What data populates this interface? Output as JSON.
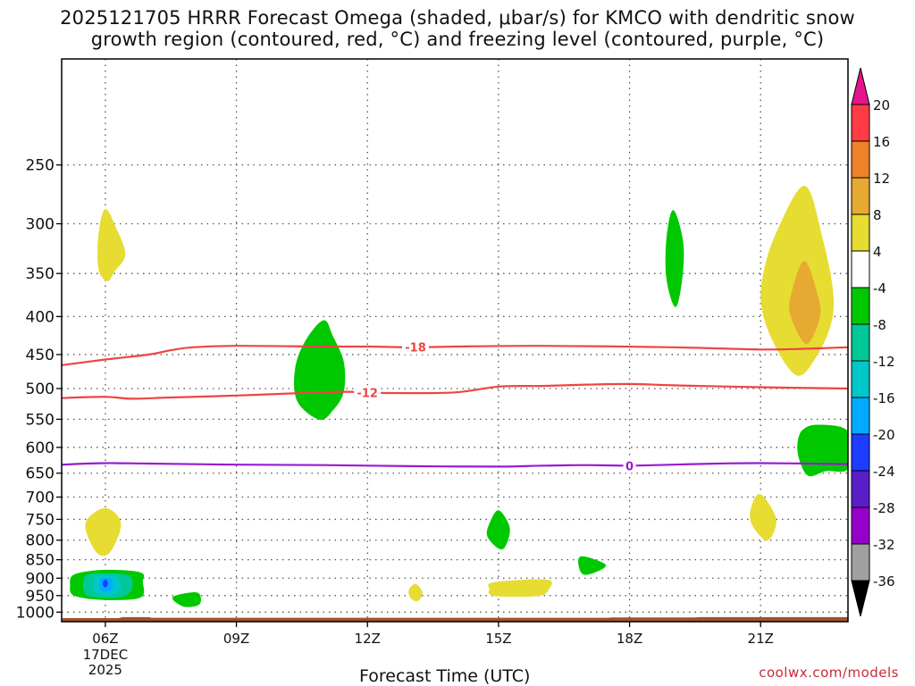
{
  "title_line1": "2025121705 HRRR Forecast Omega (shaded, μbar/s) for KMCO with dendritic snow",
  "title_line2": "growth region (contoured, red, °C) and freezing level (contoured, purple, °C)",
  "credit": "coolwx.com/models",
  "chart_data": {
    "type": "contour",
    "xlabel": "Forecast Time (UTC)",
    "x_ticks": [
      {
        "label": "06Z",
        "hour": 6,
        "sub": [
          "17DEC",
          "2025"
        ]
      },
      {
        "label": "09Z",
        "hour": 9
      },
      {
        "label": "12Z",
        "hour": 12
      },
      {
        "label": "15Z",
        "hour": 15
      },
      {
        "label": "18Z",
        "hour": 18
      },
      {
        "label": "21Z",
        "hour": 21
      }
    ],
    "xlim_hours": [
      5,
      23
    ],
    "ylim_mb": [
      1030,
      180
    ],
    "y_ticks": [
      "250",
      "300",
      "350",
      "400",
      "450",
      "500",
      "550",
      "600",
      "650",
      "700",
      "750",
      "800",
      "850",
      "900",
      "950",
      "1000"
    ],
    "colorbar_labels": [
      "20",
      "16",
      "12",
      "8",
      "4",
      "-4",
      "-8",
      "-12",
      "-16",
      "-20",
      "-24",
      "-28",
      "-32",
      "-36"
    ],
    "colorbar_colors": [
      "#ff3c46",
      "#ee8228",
      "#e6aa32",
      "#e6dc32",
      "#ffffff",
      "#00c800",
      "#00c896",
      "#00c8c8",
      "#00aaff",
      "#1e3cff",
      "#5a1ec8",
      "#9600c8",
      "#a0a0a0"
    ],
    "contours": [
      {
        "name": "-18",
        "color": "#ee4444",
        "points": [
          [
            5,
            465
          ],
          [
            6,
            457
          ],
          [
            7,
            450
          ],
          [
            7.5,
            444
          ],
          [
            8,
            440
          ],
          [
            9,
            438
          ],
          [
            11,
            439
          ],
          [
            12,
            439
          ],
          [
            13,
            440
          ],
          [
            14,
            439
          ],
          [
            16,
            438
          ],
          [
            19,
            440
          ],
          [
            21,
            443
          ],
          [
            22,
            442
          ],
          [
            23,
            440
          ]
        ],
        "label_hour": 13.1
      },
      {
        "name": "-12",
        "color": "#ee4444",
        "points": [
          [
            5,
            515
          ],
          [
            6,
            513
          ],
          [
            6.6,
            516
          ],
          [
            7.5,
            514
          ],
          [
            9,
            511
          ],
          [
            10.5,
            507
          ],
          [
            11.5,
            505
          ],
          [
            12.5,
            507
          ],
          [
            14,
            506
          ],
          [
            15,
            497
          ],
          [
            16,
            496
          ],
          [
            17,
            494
          ],
          [
            18,
            493
          ],
          [
            19,
            495
          ],
          [
            21,
            498
          ],
          [
            23,
            500
          ]
        ],
        "label_hour": 12.0
      },
      {
        "name": "0",
        "color": "#9a1ad2",
        "points": [
          [
            5,
            633
          ],
          [
            6,
            630
          ],
          [
            7,
            631
          ],
          [
            9,
            633
          ],
          [
            11,
            634
          ],
          [
            13,
            636
          ],
          [
            15,
            637
          ],
          [
            16,
            635
          ],
          [
            17,
            634
          ],
          [
            18,
            635
          ],
          [
            19,
            633
          ],
          [
            20,
            631
          ],
          [
            21,
            630
          ],
          [
            23,
            632
          ]
        ],
        "label_hour": 18.0
      }
    ],
    "regions": [
      {
        "name": "pos4-a",
        "color": "#e6dc32",
        "points": [
          [
            6,
            287
          ],
          [
            6.25,
            305
          ],
          [
            6.45,
            330
          ],
          [
            6.2,
            348
          ],
          [
            6.05,
            358
          ],
          [
            5.85,
            345
          ],
          [
            5.85,
            310
          ]
        ]
      },
      {
        "name": "neg4-a",
        "color": "#00c800",
        "points": [
          [
            11,
            405
          ],
          [
            11.2,
            425
          ],
          [
            11.45,
            460
          ],
          [
            11.45,
            505
          ],
          [
            11.2,
            535
          ],
          [
            10.9,
            550
          ],
          [
            10.4,
            520
          ],
          [
            10.35,
            470
          ],
          [
            10.6,
            430
          ]
        ]
      },
      {
        "name": "pos4-b",
        "color": "#e6dc32",
        "points": [
          [
            6,
            725
          ],
          [
            6.35,
            760
          ],
          [
            6.1,
            830
          ],
          [
            5.8,
            830
          ],
          [
            5.55,
            760
          ]
        ]
      },
      {
        "name": "neg4-b",
        "color": "#00c800",
        "points": [
          [
            5.3,
            890
          ],
          [
            6,
            878
          ],
          [
            6.8,
            885
          ],
          [
            6.85,
            910
          ],
          [
            6.8,
            955
          ],
          [
            6,
            962
          ],
          [
            5.3,
            950
          ],
          [
            5.2,
            920
          ]
        ]
      },
      {
        "name": "neg8",
        "color": "#00c896",
        "points": [
          [
            5.55,
            895
          ],
          [
            6,
            887
          ],
          [
            6.55,
            895
          ],
          [
            6.6,
            930
          ],
          [
            6.4,
            952
          ],
          [
            6,
            956
          ],
          [
            5.55,
            945
          ]
        ]
      },
      {
        "name": "neg12",
        "color": "#00c8c8",
        "points": [
          [
            5.75,
            900
          ],
          [
            6,
            892
          ],
          [
            6.3,
            902
          ],
          [
            6.35,
            930
          ],
          [
            6.2,
            945
          ],
          [
            6,
            948
          ],
          [
            5.75,
            935
          ]
        ]
      },
      {
        "name": "neg16",
        "color": "#00aaff",
        "points": [
          [
            5.88,
            905
          ],
          [
            6,
            900
          ],
          [
            6.15,
            905
          ],
          [
            6.15,
            930
          ],
          [
            6,
            940
          ],
          [
            5.88,
            930
          ]
        ]
      },
      {
        "name": "neg20",
        "color": "#1e3cff",
        "points": [
          [
            5.97,
            907
          ],
          [
            6.03,
            907
          ],
          [
            6.05,
            918
          ],
          [
            6,
            925
          ],
          [
            5.95,
            918
          ]
        ]
      },
      {
        "name": "neg4-c",
        "color": "#00c800",
        "points": [
          [
            7.55,
            955
          ],
          [
            8.1,
            942
          ],
          [
            8.15,
            975
          ],
          [
            7.8,
            982
          ]
        ]
      },
      {
        "name": "pos4-c",
        "color": "#e6dc32",
        "points": [
          [
            13.1,
            917
          ],
          [
            13.25,
            942
          ],
          [
            13.15,
            965
          ],
          [
            13,
            958
          ],
          [
            12.95,
            935
          ]
        ]
      },
      {
        "name": "neg4-d",
        "color": "#00c800",
        "points": [
          [
            15,
            730
          ],
          [
            15.25,
            770
          ],
          [
            15.15,
            815
          ],
          [
            15,
            820
          ],
          [
            14.75,
            790
          ],
          [
            14.8,
            760
          ]
        ]
      },
      {
        "name": "pos4-d",
        "color": "#e6dc32",
        "points": [
          [
            14.9,
            912
          ],
          [
            16.1,
            905
          ],
          [
            16.15,
            930
          ],
          [
            15.9,
            950
          ],
          [
            14.9,
            950
          ],
          [
            14.8,
            930
          ]
        ]
      },
      {
        "name": "neg4-e",
        "color": "#00c800",
        "points": [
          [
            16.9,
            842
          ],
          [
            17.45,
            865
          ],
          [
            17,
            890
          ],
          [
            16.85,
            870
          ]
        ]
      },
      {
        "name": "neg4-f",
        "color": "#00c800",
        "points": [
          [
            19,
            288
          ],
          [
            19.22,
            318
          ],
          [
            19.2,
            355
          ],
          [
            19.05,
            388
          ],
          [
            18.85,
            355
          ],
          [
            18.85,
            315
          ]
        ]
      },
      {
        "name": "pos4-e",
        "color": "#e6dc32",
        "points": [
          [
            22,
            267
          ],
          [
            22.4,
            312
          ],
          [
            22.65,
            370
          ],
          [
            22.6,
            410
          ],
          [
            22.25,
            455
          ],
          [
            21.85,
            480
          ],
          [
            21.4,
            445
          ],
          [
            21.05,
            395
          ],
          [
            21.05,
            355
          ],
          [
            21.35,
            310
          ]
        ]
      },
      {
        "name": "pos8",
        "color": "#e6aa32",
        "points": [
          [
            22,
            337
          ],
          [
            22.3,
            375
          ],
          [
            22.35,
            400
          ],
          [
            22.05,
            435
          ],
          [
            21.7,
            400
          ],
          [
            21.7,
            375
          ]
        ]
      },
      {
        "name": "pos4-f",
        "color": "#e6dc32",
        "points": [
          [
            21,
            695
          ],
          [
            21.35,
            750
          ],
          [
            21.15,
            800
          ],
          [
            20.8,
            760
          ],
          [
            20.8,
            720
          ]
        ]
      },
      {
        "name": "neg4-g",
        "color": "#00c800",
        "points": [
          [
            21.95,
            570
          ],
          [
            22.3,
            560
          ],
          [
            23,
            572
          ],
          [
            23,
            640
          ],
          [
            22.5,
            645
          ],
          [
            22.1,
            655
          ],
          [
            21.9,
            625
          ],
          [
            21.85,
            595
          ]
        ]
      }
    ],
    "terrain": {
      "color": "#a0522d",
      "bottom_mb": 1030,
      "points": [
        [
          5,
          1020
        ],
        [
          6.3,
          1020
        ],
        [
          6.4,
          1017
        ],
        [
          7,
          1017
        ],
        [
          7.05,
          1019
        ],
        [
          17.5,
          1019
        ],
        [
          17.6,
          1018
        ],
        [
          19.5,
          1018
        ],
        [
          19.6,
          1017
        ],
        [
          23,
          1017
        ]
      ]
    }
  }
}
